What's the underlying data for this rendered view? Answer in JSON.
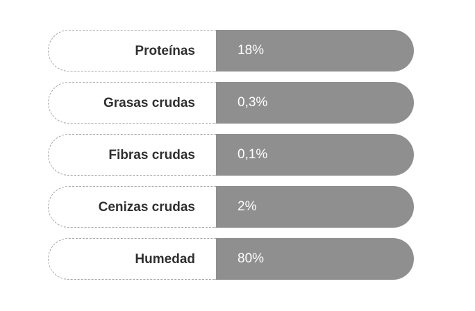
{
  "composition": {
    "rows": [
      {
        "label": "Proteínas",
        "value": "18%"
      },
      {
        "label": "Grasas crudas",
        "value": "0,3%"
      },
      {
        "label": "Fibras crudas",
        "value": "0,1%"
      },
      {
        "label": "Cenizas crudas",
        "value": "2%"
      },
      {
        "label": "Humedad",
        "value": "80%"
      }
    ]
  },
  "colors": {
    "value_background": "#8f8f8f",
    "label_text": "#2f2f2f",
    "value_text": "#ffffff",
    "dashed_border": "#a8a8a8"
  }
}
